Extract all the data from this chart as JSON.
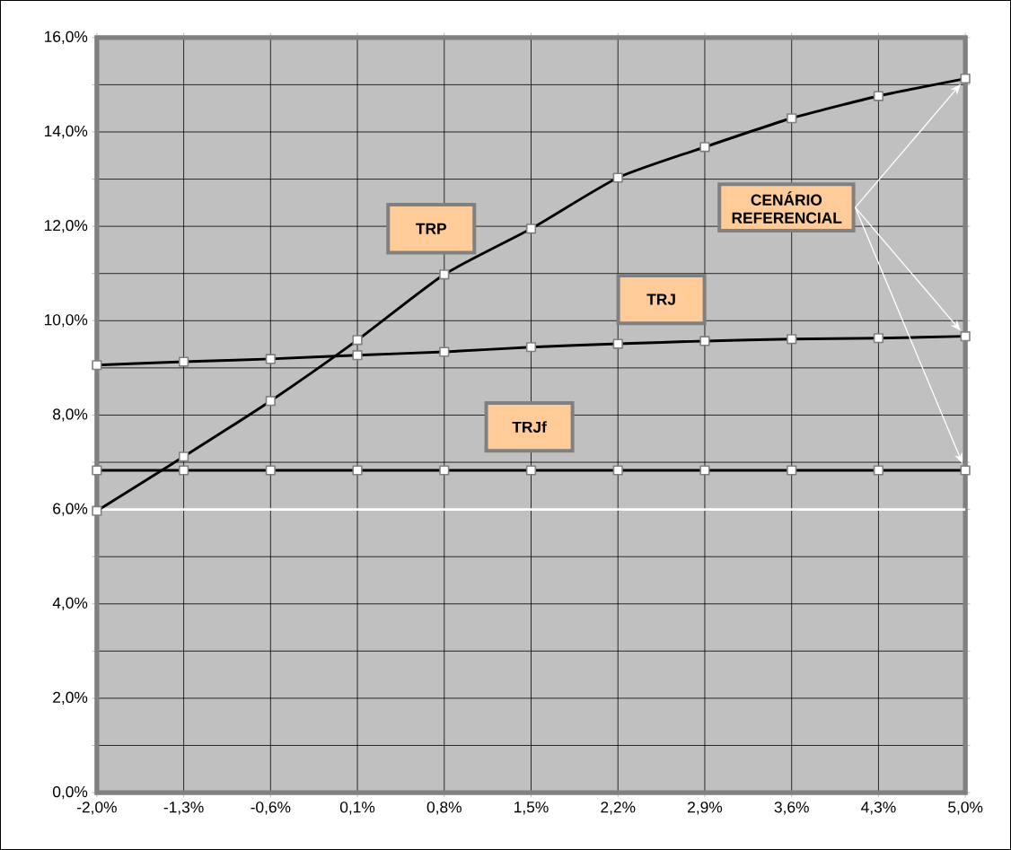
{
  "chart_data": {
    "type": "line",
    "categories": [
      "-2,0%",
      "-1,3%",
      "-0,6%",
      "0,1%",
      "0,8%",
      "1,5%",
      "2,2%",
      "2,9%",
      "3,6%",
      "4,3%",
      "5,0%"
    ],
    "series": [
      {
        "name": "TRP",
        "color": "#000000",
        "values": [
          5.97,
          7.12,
          8.3,
          9.59,
          10.98,
          11.95,
          13.03,
          13.68,
          14.29,
          14.76,
          15.13
        ]
      },
      {
        "name": "TRJ",
        "color": "#000000",
        "values": [
          9.06,
          9.13,
          9.19,
          9.27,
          9.34,
          9.44,
          9.51,
          9.57,
          9.61,
          9.63,
          9.67
        ]
      },
      {
        "name": "TRJf",
        "color": "#000000",
        "values": [
          6.83,
          6.83,
          6.83,
          6.83,
          6.83,
          6.83,
          6.83,
          6.83,
          6.83,
          6.83,
          6.83
        ]
      }
    ],
    "annotations": [
      "CENÁRIO REFERENCIAL"
    ],
    "ylim": [
      0,
      16
    ],
    "yticks": [
      {
        "value": 0,
        "label": "0,0%"
      },
      {
        "value": 1,
        "label": null
      },
      {
        "value": 2,
        "label": "2,0%"
      },
      {
        "value": 3,
        "label": null
      },
      {
        "value": 4,
        "label": "4,0%"
      },
      {
        "value": 5,
        "label": null
      },
      {
        "value": 6,
        "label": "6,0%"
      },
      {
        "value": 7,
        "label": null
      },
      {
        "value": 8,
        "label": "8,0%"
      },
      {
        "value": 9,
        "label": null
      },
      {
        "value": 10,
        "label": "10,0%"
      },
      {
        "value": 11,
        "label": null
      },
      {
        "value": 12,
        "label": "12,0%"
      },
      {
        "value": 13,
        "label": null
      },
      {
        "value": 14,
        "label": "14,0%"
      },
      {
        "value": 15,
        "label": null
      },
      {
        "value": 16,
        "label": "16,0%"
      }
    ],
    "ref_lines": [
      {
        "axis": "y",
        "value": 6,
        "color": "#ffffff"
      }
    ],
    "grid": true,
    "legend": false,
    "marker": "square",
    "line_style": "solid"
  }
}
